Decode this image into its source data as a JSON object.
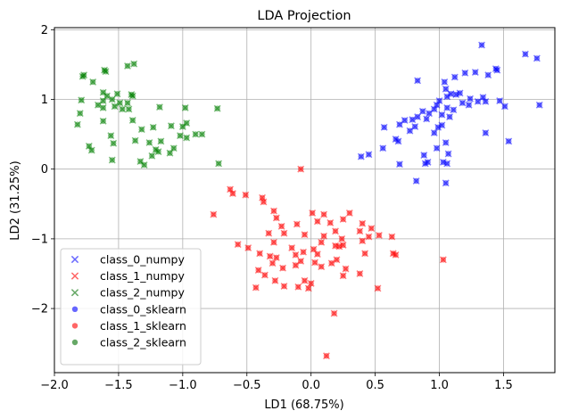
{
  "chart_data": {
    "type": "scatter",
    "title": "LDA Projection",
    "xlabel": "LD1 (68.75%)",
    "ylabel": "LD2 (31.25%)",
    "xlim": [
      -2.0,
      1.9
    ],
    "ylim": [
      -2.92,
      2.03
    ],
    "xticks": [
      -2.0,
      -1.5,
      -1.0,
      -0.5,
      0.0,
      0.5,
      1.0,
      1.5
    ],
    "xtick_labels": [
      "−2.0",
      "−1.5",
      "−1.0",
      "−0.5",
      "0.0",
      "0.5",
      "1.0",
      "1.5"
    ],
    "yticks": [
      -2,
      -1,
      0,
      1,
      2
    ],
    "ytick_labels": [
      "−2",
      "−1",
      "0",
      "1",
      "2"
    ],
    "grid": true,
    "legend_position": "lower-left",
    "legend": [
      {
        "name": "class_0_numpy",
        "marker": "x",
        "color": "#6666ff"
      },
      {
        "name": "class_1_numpy",
        "marker": "x",
        "color": "#ff6666"
      },
      {
        "name": "class_2_numpy",
        "marker": "x",
        "color": "#66a866"
      },
      {
        "name": "class_0_sklearn",
        "marker": "o",
        "color": "#6666ff"
      },
      {
        "name": "class_1_sklearn",
        "marker": "o",
        "color": "#ff6666"
      },
      {
        "name": "class_2_sklearn",
        "marker": "o",
        "color": "#66a866"
      }
    ],
    "series": [
      {
        "name": "class_0",
        "color": "#0000ff",
        "points": [
          [
            1.33,
            1.78
          ],
          [
            1.67,
            1.65
          ],
          [
            1.76,
            1.59
          ],
          [
            1.44,
            1.44
          ],
          [
            1.45,
            1.42
          ],
          [
            1.38,
            1.35
          ],
          [
            1.2,
            1.38
          ],
          [
            1.28,
            1.39
          ],
          [
            1.12,
            1.32
          ],
          [
            1.04,
            1.25
          ],
          [
            0.83,
            1.27
          ],
          [
            1.05,
            1.15
          ],
          [
            1.09,
            1.08
          ],
          [
            1.13,
            1.07
          ],
          [
            1.16,
            1.09
          ],
          [
            1.24,
            1.01
          ],
          [
            1.06,
            1.04
          ],
          [
            1.34,
            1.03
          ],
          [
            1.3,
            0.97
          ],
          [
            1.36,
            0.97
          ],
          [
            1.47,
            0.98
          ],
          [
            1.51,
            0.9
          ],
          [
            1.78,
            0.92
          ],
          [
            1.23,
            0.92
          ],
          [
            1.18,
            0.95
          ],
          [
            1.0,
            0.98
          ],
          [
            0.98,
            0.92
          ],
          [
            1.11,
            0.85
          ],
          [
            1.06,
            0.88
          ],
          [
            0.96,
            0.86
          ],
          [
            0.92,
            0.8
          ],
          [
            0.87,
            0.83
          ],
          [
            0.83,
            0.75
          ],
          [
            1.02,
            0.78
          ],
          [
            1.08,
            0.75
          ],
          [
            0.73,
            0.7
          ],
          [
            0.79,
            0.71
          ],
          [
            0.9,
            0.72
          ],
          [
            1.02,
            0.63
          ],
          [
            0.69,
            0.64
          ],
          [
            0.81,
            0.61
          ],
          [
            0.99,
            0.6
          ],
          [
            0.57,
            0.6
          ],
          [
            0.77,
            0.55
          ],
          [
            0.96,
            0.52
          ],
          [
            1.36,
            0.52
          ],
          [
            1.54,
            0.4
          ],
          [
            0.66,
            0.43
          ],
          [
            0.68,
            0.4
          ],
          [
            1.05,
            0.38
          ],
          [
            0.98,
            0.3
          ],
          [
            0.56,
            0.3
          ],
          [
            0.88,
            0.2
          ],
          [
            1.07,
            0.22
          ],
          [
            0.45,
            0.21
          ],
          [
            0.39,
            0.18
          ],
          [
            0.91,
            0.1
          ],
          [
            0.89,
            0.08
          ],
          [
            0.69,
            0.07
          ],
          [
            1.03,
            0.1
          ],
          [
            1.06,
            0.08
          ],
          [
            0.82,
            -0.17
          ],
          [
            1.05,
            -0.2
          ]
        ]
      },
      {
        "name": "class_1",
        "color": "#ff0000",
        "points": [
          [
            -0.08,
            -0.0
          ],
          [
            -0.63,
            -0.29
          ],
          [
            -0.61,
            -0.35
          ],
          [
            -0.51,
            -0.37
          ],
          [
            -0.38,
            -0.41
          ],
          [
            -0.76,
            -0.65
          ],
          [
            -0.37,
            -0.47
          ],
          [
            -0.29,
            -0.6
          ],
          [
            0.01,
            -0.63
          ],
          [
            0.1,
            -0.65
          ],
          [
            0.3,
            -0.63
          ],
          [
            0.25,
            -0.72
          ],
          [
            0.05,
            -0.75
          ],
          [
            -0.27,
            -0.7
          ],
          [
            -0.11,
            -0.79
          ],
          [
            -0.23,
            -0.82
          ],
          [
            0.15,
            -0.77
          ],
          [
            0.4,
            -0.78
          ],
          [
            0.47,
            -0.85
          ],
          [
            0.38,
            -0.89
          ],
          [
            0.19,
            -0.89
          ],
          [
            -0.05,
            -0.94
          ],
          [
            -0.21,
            -0.92
          ],
          [
            -0.33,
            -0.92
          ],
          [
            0.1,
            -0.96
          ],
          [
            0.24,
            -1.0
          ],
          [
            0.4,
            -1.03
          ],
          [
            0.45,
            -0.97
          ],
          [
            0.63,
            -0.97
          ],
          [
            0.53,
            -0.95
          ],
          [
            -0.29,
            -1.05
          ],
          [
            -0.57,
            -1.08
          ],
          [
            -0.49,
            -1.13
          ],
          [
            0.08,
            -1.05
          ],
          [
            0.19,
            -1.1
          ],
          [
            0.22,
            -1.11
          ],
          [
            0.25,
            -1.09
          ],
          [
            -0.15,
            -1.13
          ],
          [
            -0.06,
            -1.19
          ],
          [
            0.02,
            -1.15
          ],
          [
            -0.4,
            -1.21
          ],
          [
            -0.32,
            -1.25
          ],
          [
            -0.27,
            -1.27
          ],
          [
            -0.12,
            -1.23
          ],
          [
            0.05,
            -1.22
          ],
          [
            0.66,
            -1.23
          ],
          [
            0.64,
            -1.21
          ],
          [
            0.42,
            -1.21
          ],
          [
            -0.08,
            -1.32
          ],
          [
            0.03,
            -1.34
          ],
          [
            0.16,
            -1.35
          ],
          [
            0.08,
            -1.4
          ],
          [
            0.2,
            -1.3
          ],
          [
            1.03,
            -1.3
          ],
          [
            -0.12,
            -1.38
          ],
          [
            -0.3,
            -1.35
          ],
          [
            -0.22,
            -1.42
          ],
          [
            -0.41,
            -1.45
          ],
          [
            -0.36,
            -1.52
          ],
          [
            0.27,
            -1.43
          ],
          [
            0.38,
            -1.5
          ],
          [
            0.25,
            -1.53
          ],
          [
            -0.28,
            -1.6
          ],
          [
            -0.05,
            -1.6
          ],
          [
            0.0,
            -1.64
          ],
          [
            -0.1,
            -1.69
          ],
          [
            -0.02,
            -1.71
          ],
          [
            -0.21,
            -1.68
          ],
          [
            -0.43,
            -1.7
          ],
          [
            0.52,
            -1.71
          ],
          [
            0.18,
            -2.07
          ],
          [
            0.12,
            -2.68
          ]
        ]
      },
      {
        "name": "class_2",
        "color": "#008000",
        "points": [
          [
            -1.38,
            1.51
          ],
          [
            -1.43,
            1.48
          ],
          [
            -1.6,
            1.4
          ],
          [
            -1.61,
            1.42
          ],
          [
            -1.77,
            1.35
          ],
          [
            -1.78,
            1.33
          ],
          [
            -1.7,
            1.25
          ],
          [
            -1.62,
            1.1
          ],
          [
            -1.59,
            1.05
          ],
          [
            -1.51,
            1.08
          ],
          [
            -1.4,
            1.07
          ],
          [
            -1.39,
            1.05
          ],
          [
            -1.55,
            1.0
          ],
          [
            -1.62,
            0.98
          ],
          [
            -1.66,
            0.92
          ],
          [
            -1.62,
            0.88
          ],
          [
            -1.53,
            0.9
          ],
          [
            -1.49,
            0.95
          ],
          [
            -1.43,
            0.95
          ],
          [
            -1.47,
            0.86
          ],
          [
            -1.42,
            0.86
          ],
          [
            -1.18,
            0.89
          ],
          [
            -0.98,
            0.88
          ],
          [
            -0.73,
            0.87
          ],
          [
            -1.79,
            0.99
          ],
          [
            -1.8,
            0.8
          ],
          [
            -1.82,
            0.64
          ],
          [
            -1.62,
            0.69
          ],
          [
            -1.39,
            0.7
          ],
          [
            -1.32,
            0.57
          ],
          [
            -1.23,
            0.6
          ],
          [
            -1.09,
            0.62
          ],
          [
            -1.0,
            0.61
          ],
          [
            -0.97,
            0.66
          ],
          [
            -1.02,
            0.48
          ],
          [
            -0.97,
            0.45
          ],
          [
            -0.9,
            0.5
          ],
          [
            -0.85,
            0.5
          ],
          [
            -1.56,
            0.48
          ],
          [
            -1.37,
            0.41
          ],
          [
            -1.26,
            0.38
          ],
          [
            -1.17,
            0.4
          ],
          [
            -1.73,
            0.33
          ],
          [
            -1.71,
            0.27
          ],
          [
            -1.54,
            0.37
          ],
          [
            -1.21,
            0.28
          ],
          [
            -1.19,
            0.25
          ],
          [
            -1.07,
            0.3
          ],
          [
            -1.1,
            0.23
          ],
          [
            -1.24,
            0.19
          ],
          [
            -1.33,
            0.11
          ],
          [
            -1.3,
            0.06
          ],
          [
            -1.55,
            0.13
          ],
          [
            -0.72,
            0.08
          ]
        ]
      }
    ]
  }
}
